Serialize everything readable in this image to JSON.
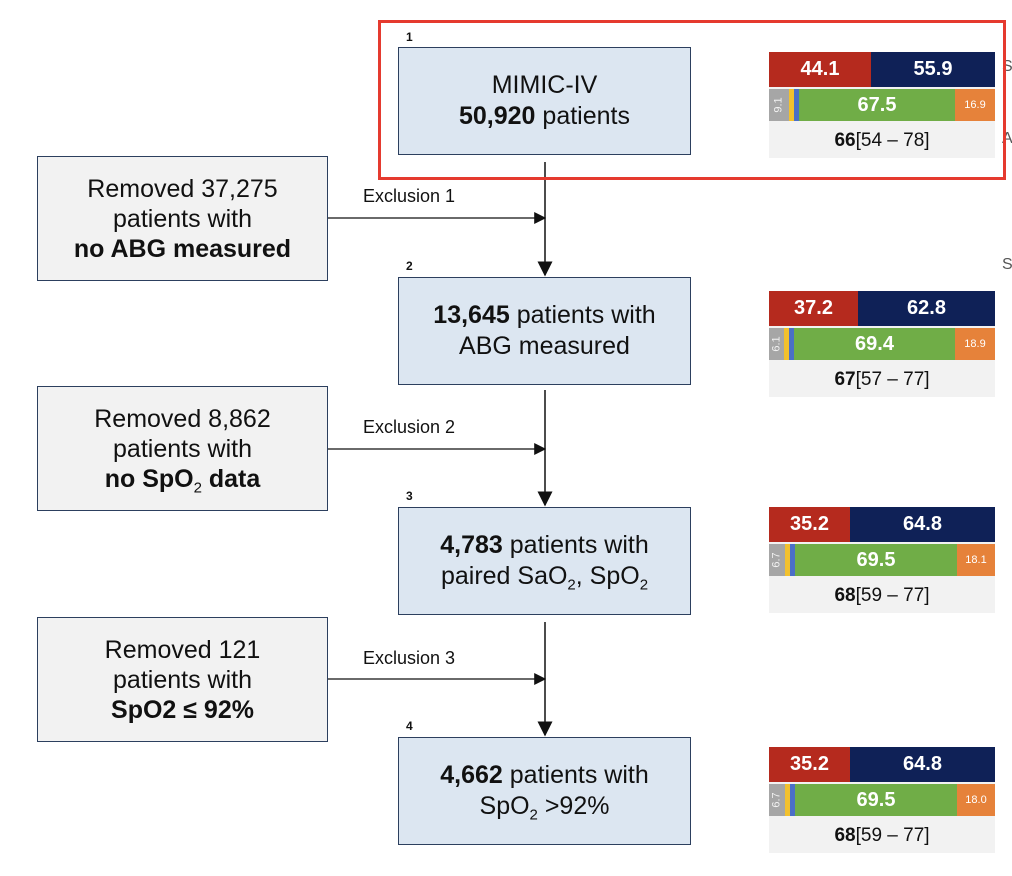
{
  "steps": [
    {
      "num": "1",
      "line1_bold": "",
      "line1": "MIMIC-IV",
      "line2_bold": "50,920",
      "line2": " patients"
    },
    {
      "num": "2",
      "line1_bold": "13,645",
      "line1": " patients with",
      "line2": "ABG measured"
    },
    {
      "num": "3",
      "line1_bold": "4,783",
      "line1": " patients with",
      "line2_a": "paired SaO",
      "line2_b": ", SpO"
    },
    {
      "num": "4",
      "line1_bold": "4,662",
      "line1": " patients with",
      "line2_a": "SpO",
      "line2_b": " >92%"
    }
  ],
  "exclusions": [
    {
      "label": "Exclusion 1",
      "line1": "Removed 37,275",
      "line2": "patients with",
      "line3": "no ABG measured"
    },
    {
      "label": "Exclusion 2",
      "line1": "Removed 8,862",
      "line2": "patients with",
      "line3_a": "no SpO",
      "line3_b": " data"
    },
    {
      "label": "Exclusion 3",
      "line1": "Removed 121",
      "line2": "patients with",
      "line3": "SpO2 ≤ 92%"
    }
  ],
  "subscript_2": "2",
  "stats": [
    {
      "sex_f": "44.1",
      "sex_m": "55.9",
      "race_gray": "9.1",
      "race_green": "67.5",
      "race_orange": "16.9",
      "age_median": "66",
      "age_iqr": " [54 – 78]"
    },
    {
      "sex_f": "37.2",
      "sex_m": "62.8",
      "race_gray": "6.1",
      "race_green": "69.4",
      "race_orange": "18.9",
      "age_median": "67",
      "age_iqr": " [57 – 77]"
    },
    {
      "sex_f": "35.2",
      "sex_m": "64.8",
      "race_gray": "6.7",
      "race_green": "69.5",
      "race_orange": "18.1",
      "age_median": "68",
      "age_iqr": " [59 – 77]"
    },
    {
      "sex_f": "35.2",
      "sex_m": "64.8",
      "race_gray": "6.7",
      "race_green": "69.5",
      "race_orange": "18.0",
      "age_median": "68",
      "age_iqr": " [59 – 77]"
    }
  ],
  "edge_glyphs": [
    "S",
    "A",
    "S"
  ],
  "colors": {
    "step_fill": "#dce6f1",
    "excl_fill": "#f2f2f2",
    "female": "#b52a1e",
    "male": "#0f2157",
    "race_gray": "#a6a6a6",
    "race_yellow": "#f2c12e",
    "race_blue": "#4a6fc7",
    "race_green": "#70ad47",
    "race_orange": "#e6823a",
    "highlight": "#e53a2f"
  }
}
